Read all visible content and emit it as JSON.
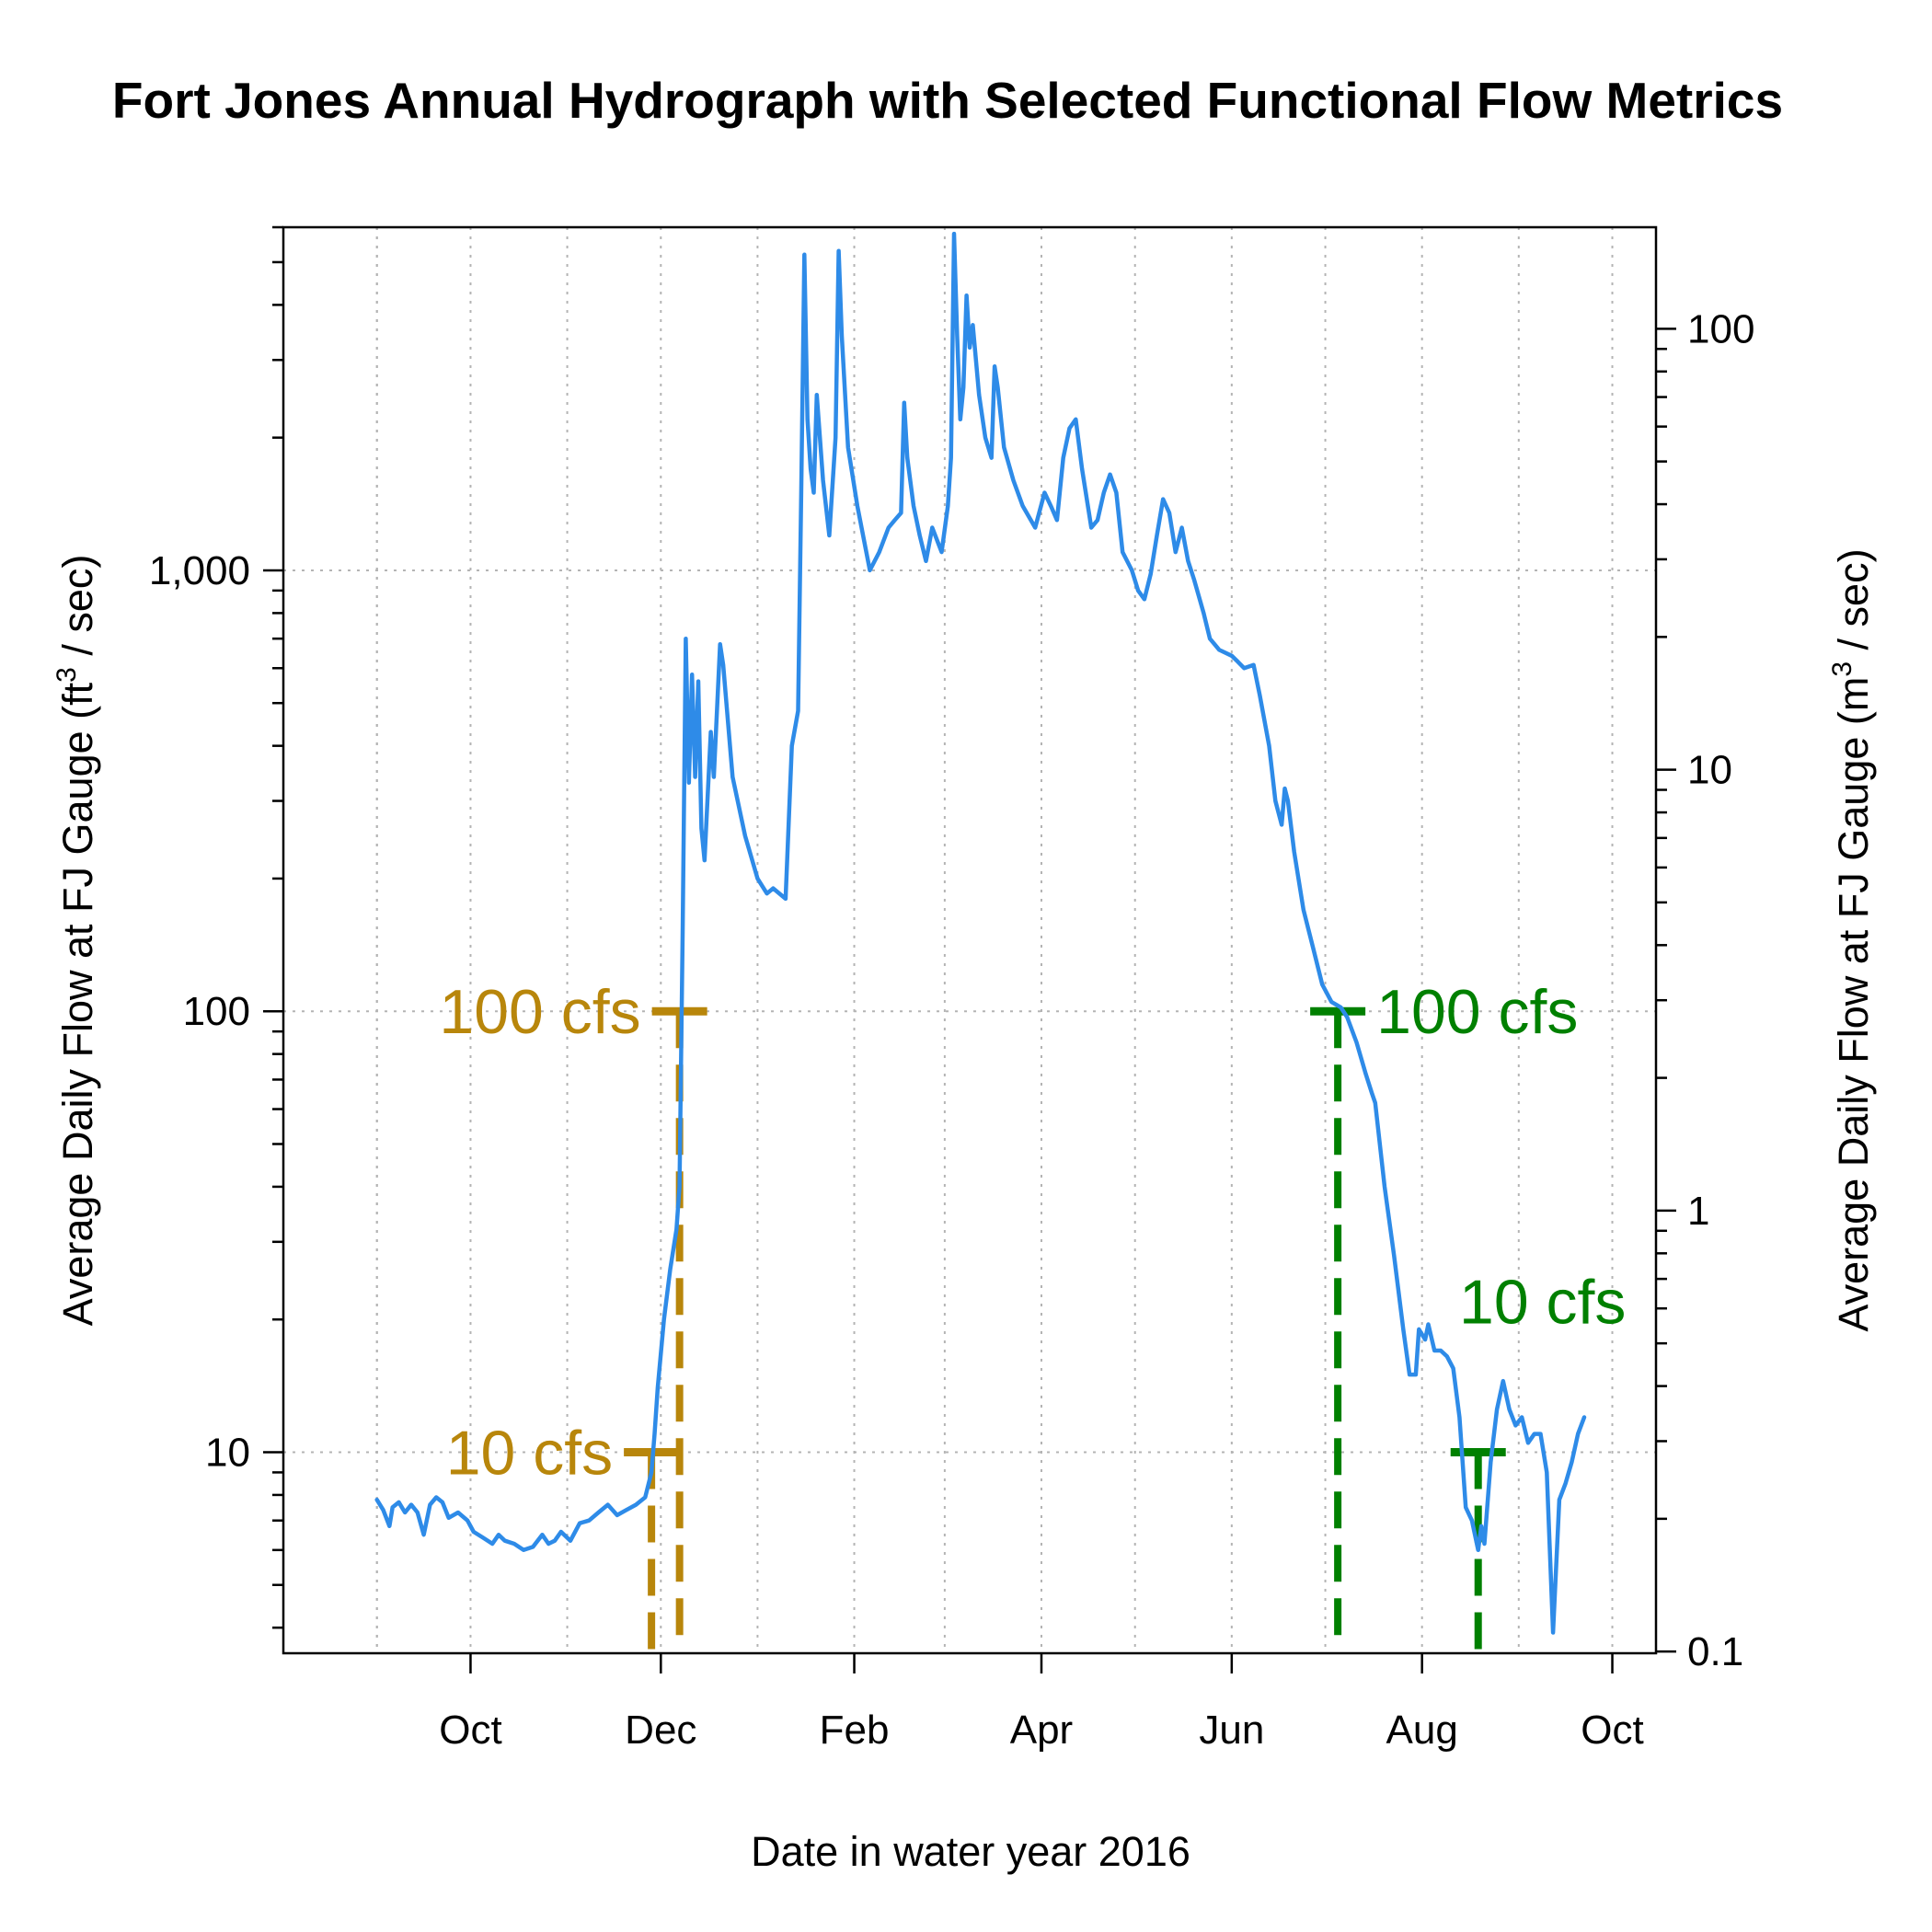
{
  "chart_data": {
    "type": "line",
    "title": "Fort Jones Annual Hydrograph with Selected Functional Flow Metrics",
    "xlabel": "Date in water year 2016",
    "ylabel_left": {
      "base": "Average Daily Flow at FJ Gauge (ft",
      "sup": "3",
      "tail": " / sec)"
    },
    "ylabel_right": {
      "base": "Average Daily Flow at FJ Gauge (m",
      "sup": "3",
      "tail": " / sec)"
    },
    "log_scale_y": true,
    "grid": true,
    "xlim": [
      "2015-08-02",
      "2016-10-15"
    ],
    "ylim_left": [
      3.5,
      6000
    ],
    "x_ticks": [
      {
        "date": "2015-10-01",
        "label": "Oct"
      },
      {
        "date": "2015-12-01",
        "label": "Dec"
      },
      {
        "date": "2016-02-01",
        "label": "Feb"
      },
      {
        "date": "2016-04-01",
        "label": "Apr"
      },
      {
        "date": "2016-06-01",
        "label": "Jun"
      },
      {
        "date": "2016-08-01",
        "label": "Aug"
      },
      {
        "date": "2016-10-01",
        "label": "Oct"
      }
    ],
    "x_minor_grid": [
      "2015-09-01",
      "2015-11-01",
      "2016-01-01",
      "2016-03-01",
      "2016-05-01",
      "2016-07-01",
      "2016-09-01"
    ],
    "y_ticks_left": [
      {
        "value": 10,
        "label": "10"
      },
      {
        "value": 100,
        "label": "100"
      },
      {
        "value": 1000,
        "label": "1,000"
      }
    ],
    "y_ticks_right": [
      {
        "value": 0.1,
        "label": "0.1"
      },
      {
        "value": 1,
        "label": "1"
      },
      {
        "value": 10,
        "label": "10"
      },
      {
        "value": 100,
        "label": "100"
      }
    ],
    "series": [
      {
        "color": "#2E8BE8",
        "points": [
          [
            "2015-09-01",
            7.8
          ],
          [
            "2015-09-03",
            7.4
          ],
          [
            "2015-09-05",
            6.8
          ],
          [
            "2015-09-06",
            7.5
          ],
          [
            "2015-09-08",
            7.7
          ],
          [
            "2015-09-10",
            7.3
          ],
          [
            "2015-09-12",
            7.6
          ],
          [
            "2015-09-14",
            7.3
          ],
          [
            "2015-09-16",
            6.5
          ],
          [
            "2015-09-18",
            7.6
          ],
          [
            "2015-09-20",
            7.9
          ],
          [
            "2015-09-22",
            7.7
          ],
          [
            "2015-09-24",
            7.1
          ],
          [
            "2015-09-27",
            7.3
          ],
          [
            "2015-09-30",
            7.0
          ],
          [
            "2015-10-02",
            6.6
          ],
          [
            "2015-10-05",
            6.4
          ],
          [
            "2015-10-08",
            6.2
          ],
          [
            "2015-10-10",
            6.5
          ],
          [
            "2015-10-12",
            6.3
          ],
          [
            "2015-10-15",
            6.2
          ],
          [
            "2015-10-18",
            6.0
          ],
          [
            "2015-10-21",
            6.1
          ],
          [
            "2015-10-24",
            6.5
          ],
          [
            "2015-10-26",
            6.2
          ],
          [
            "2015-10-28",
            6.3
          ],
          [
            "2015-10-30",
            6.6
          ],
          [
            "2015-11-02",
            6.3
          ],
          [
            "2015-11-05",
            6.9
          ],
          [
            "2015-11-08",
            7.0
          ],
          [
            "2015-11-11",
            7.3
          ],
          [
            "2015-11-14",
            7.6
          ],
          [
            "2015-11-17",
            7.2
          ],
          [
            "2015-11-20",
            7.4
          ],
          [
            "2015-11-23",
            7.6
          ],
          [
            "2015-11-26",
            7.9
          ],
          [
            "2015-11-28",
            9.0
          ],
          [
            "2015-11-29",
            11.0
          ],
          [
            "2015-11-30",
            14.0
          ],
          [
            "2015-12-02",
            20.0
          ],
          [
            "2015-12-04",
            26.0
          ],
          [
            "2015-12-06",
            32.0
          ],
          [
            "2015-12-07",
            40.0
          ],
          [
            "2015-12-08",
            150.0
          ],
          [
            "2015-12-09",
            700.0
          ],
          [
            "2015-12-10",
            330.0
          ],
          [
            "2015-12-11",
            580.0
          ],
          [
            "2015-12-12",
            340.0
          ],
          [
            "2015-12-13",
            560.0
          ],
          [
            "2015-12-14",
            260.0
          ],
          [
            "2015-12-15",
            220.0
          ],
          [
            "2015-12-17",
            430.0
          ],
          [
            "2015-12-18",
            340.0
          ],
          [
            "2015-12-19",
            480.0
          ],
          [
            "2015-12-20",
            680.0
          ],
          [
            "2015-12-21",
            610.0
          ],
          [
            "2015-12-24",
            340.0
          ],
          [
            "2015-12-28",
            250.0
          ],
          [
            "2016-01-01",
            200.0
          ],
          [
            "2016-01-04",
            185.0
          ],
          [
            "2016-01-06",
            190.0
          ],
          [
            "2016-01-10",
            180.0
          ],
          [
            "2016-01-12",
            400.0
          ],
          [
            "2016-01-14",
            480.0
          ],
          [
            "2016-01-15",
            1500.0
          ],
          [
            "2016-01-16",
            5200.0
          ],
          [
            "2016-01-17",
            2200.0
          ],
          [
            "2016-01-18",
            1700.0
          ],
          [
            "2016-01-19",
            1500.0
          ],
          [
            "2016-01-20",
            2500.0
          ],
          [
            "2016-01-22",
            1600.0
          ],
          [
            "2016-01-24",
            1200.0
          ],
          [
            "2016-01-26",
            2000.0
          ],
          [
            "2016-01-27",
            5300.0
          ],
          [
            "2016-01-28",
            3400.0
          ],
          [
            "2016-01-30",
            1900.0
          ],
          [
            "2016-02-02",
            1400.0
          ],
          [
            "2016-02-06",
            1000.0
          ],
          [
            "2016-02-09",
            1100.0
          ],
          [
            "2016-02-12",
            1250.0
          ],
          [
            "2016-02-14",
            1300.0
          ],
          [
            "2016-02-16",
            1350.0
          ],
          [
            "2016-02-17",
            2400.0
          ],
          [
            "2016-02-18",
            1800.0
          ],
          [
            "2016-02-20",
            1400.0
          ],
          [
            "2016-02-22",
            1200.0
          ],
          [
            "2016-02-24",
            1050.0
          ],
          [
            "2016-02-26",
            1250.0
          ],
          [
            "2016-02-29",
            1100.0
          ],
          [
            "2016-03-02",
            1400.0
          ],
          [
            "2016-03-03",
            1800.0
          ],
          [
            "2016-03-04",
            5800.0
          ],
          [
            "2016-03-05",
            3400.0
          ],
          [
            "2016-03-06",
            2200.0
          ],
          [
            "2016-03-07",
            2600.0
          ],
          [
            "2016-03-08",
            4200.0
          ],
          [
            "2016-03-09",
            3200.0
          ],
          [
            "2016-03-10",
            3600.0
          ],
          [
            "2016-03-12",
            2500.0
          ],
          [
            "2016-03-14",
            2000.0
          ],
          [
            "2016-03-16",
            1800.0
          ],
          [
            "2016-03-17",
            2900.0
          ],
          [
            "2016-03-18",
            2600.0
          ],
          [
            "2016-03-20",
            1900.0
          ],
          [
            "2016-03-23",
            1600.0
          ],
          [
            "2016-03-26",
            1400.0
          ],
          [
            "2016-03-30",
            1250.0
          ],
          [
            "2016-04-02",
            1500.0
          ],
          [
            "2016-04-04",
            1400.0
          ],
          [
            "2016-04-06",
            1300.0
          ],
          [
            "2016-04-08",
            1800.0
          ],
          [
            "2016-04-10",
            2100.0
          ],
          [
            "2016-04-12",
            2200.0
          ],
          [
            "2016-04-14",
            1700.0
          ],
          [
            "2016-04-17",
            1250.0
          ],
          [
            "2016-04-19",
            1300.0
          ],
          [
            "2016-04-21",
            1500.0
          ],
          [
            "2016-04-23",
            1650.0
          ],
          [
            "2016-04-25",
            1500.0
          ],
          [
            "2016-04-27",
            1100.0
          ],
          [
            "2016-04-30",
            1000.0
          ],
          [
            "2016-05-02",
            900.0
          ],
          [
            "2016-05-04",
            860.0
          ],
          [
            "2016-05-06",
            980.0
          ],
          [
            "2016-05-08",
            1200.0
          ],
          [
            "2016-05-10",
            1450.0
          ],
          [
            "2016-05-12",
            1350.0
          ],
          [
            "2016-05-14",
            1100.0
          ],
          [
            "2016-05-16",
            1250.0
          ],
          [
            "2016-05-18",
            1050.0
          ],
          [
            "2016-05-20",
            950.0
          ],
          [
            "2016-05-23",
            800.0
          ],
          [
            "2016-05-25",
            700.0
          ],
          [
            "2016-05-28",
            660.0
          ],
          [
            "2016-06-01",
            640.0
          ],
          [
            "2016-06-03",
            620.0
          ],
          [
            "2016-06-05",
            600.0
          ],
          [
            "2016-06-08",
            610.0
          ],
          [
            "2016-06-10",
            520.0
          ],
          [
            "2016-06-13",
            400.0
          ],
          [
            "2016-06-15",
            300.0
          ],
          [
            "2016-06-17",
            265.0
          ],
          [
            "2016-06-18",
            320.0
          ],
          [
            "2016-06-19",
            300.0
          ],
          [
            "2016-06-21",
            230.0
          ],
          [
            "2016-06-24",
            170.0
          ],
          [
            "2016-06-27",
            140.0
          ],
          [
            "2016-06-30",
            115.0
          ],
          [
            "2016-07-03",
            105.0
          ],
          [
            "2016-07-06",
            102.0
          ],
          [
            "2016-07-08",
            97.0
          ],
          [
            "2016-07-11",
            85.0
          ],
          [
            "2016-07-14",
            72.0
          ],
          [
            "2016-07-16",
            65.0
          ],
          [
            "2016-07-17",
            62.0
          ],
          [
            "2016-07-20",
            40.0
          ],
          [
            "2016-07-23",
            28.0
          ],
          [
            "2016-07-26",
            19.0
          ],
          [
            "2016-07-28",
            15.0
          ],
          [
            "2016-07-30",
            15.0
          ],
          [
            "2016-07-31",
            19.0
          ],
          [
            "2016-08-02",
            18.0
          ],
          [
            "2016-08-03",
            19.5
          ],
          [
            "2016-08-05",
            17.0
          ],
          [
            "2016-08-07",
            17.0
          ],
          [
            "2016-08-09",
            16.5
          ],
          [
            "2016-08-11",
            15.5
          ],
          [
            "2016-08-13",
            12.0
          ],
          [
            "2016-08-15",
            7.5
          ],
          [
            "2016-08-17",
            7.0
          ],
          [
            "2016-08-19",
            6.0
          ],
          [
            "2016-08-20",
            6.8
          ],
          [
            "2016-08-21",
            6.2
          ],
          [
            "2016-08-23",
            9.5
          ],
          [
            "2016-08-25",
            12.5
          ],
          [
            "2016-08-27",
            14.5
          ],
          [
            "2016-08-29",
            12.5
          ],
          [
            "2016-08-31",
            11.5
          ],
          [
            "2016-09-02",
            12.0
          ],
          [
            "2016-09-04",
            10.5
          ],
          [
            "2016-09-06",
            11.0
          ],
          [
            "2016-09-08",
            11.0
          ],
          [
            "2016-09-10",
            9.0
          ],
          [
            "2016-09-12",
            3.9
          ],
          [
            "2016-09-14",
            7.8
          ],
          [
            "2016-09-16",
            8.5
          ],
          [
            "2016-09-18",
            9.5
          ],
          [
            "2016-09-20",
            11.0
          ],
          [
            "2016-09-22",
            12.0
          ]
        ]
      }
    ],
    "annotations": [
      {
        "text": "100 cfs",
        "color": "#B8860B",
        "flow": 100,
        "date": "2015-12-07",
        "label_side": "left"
      },
      {
        "text": "10 cfs",
        "color": "#B8860B",
        "flow": 10,
        "date": "2015-11-28",
        "label_side": "left"
      },
      {
        "text": "100 cfs",
        "color": "#008000",
        "flow": 100,
        "date": "2016-07-05",
        "label_side": "right"
      },
      {
        "text": "10 cfs",
        "color": "#008000",
        "flow": 10,
        "date": "2016-08-19",
        "label_side": "above"
      }
    ],
    "m3_per_ft3": 0.0283168
  }
}
